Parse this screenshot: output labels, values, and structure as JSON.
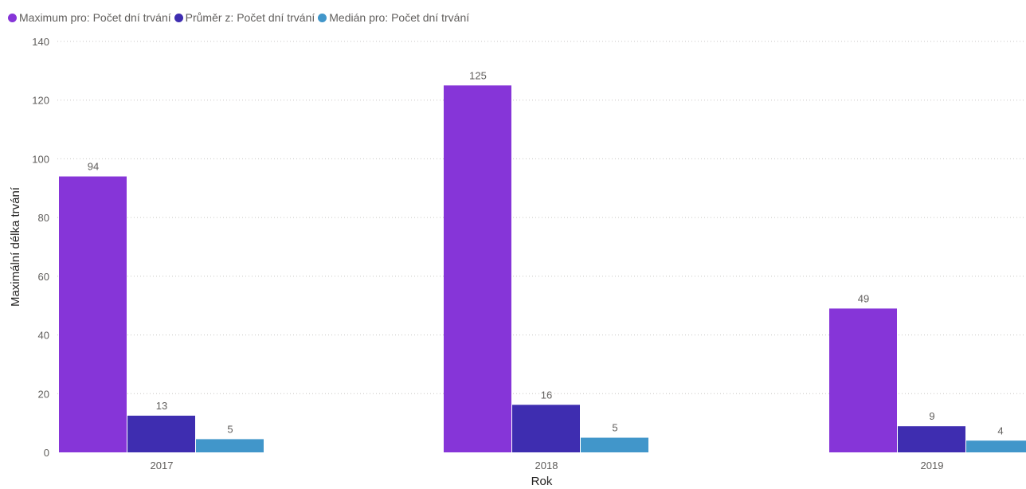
{
  "chart_data": {
    "type": "bar",
    "categories": [
      "2017",
      "2018",
      "2019"
    ],
    "series": [
      {
        "name": "Maximum pro: Počet dní trvání",
        "values": [
          94,
          125,
          49
        ],
        "color": "#8635d8"
      },
      {
        "name": "Průměr z: Počet dní trvání",
        "values": [
          12.5,
          16.2,
          8.9
        ],
        "labels": [
          "13",
          "16",
          "9"
        ],
        "color": "#3e2db0"
      },
      {
        "name": "Medián pro: Počet dní trvání",
        "values": [
          4.5,
          5,
          4
        ],
        "labels": [
          "5",
          "5",
          "4"
        ],
        "color": "#4196ca"
      }
    ],
    "xlabel": "Rok",
    "ylabel": "Maximální délka trvání",
    "ylim": [
      0,
      140
    ],
    "yticks": [
      "0",
      "20",
      "40",
      "60",
      "80",
      "100",
      "120",
      "140"
    ],
    "grid": true,
    "legend_position": "top-left"
  }
}
